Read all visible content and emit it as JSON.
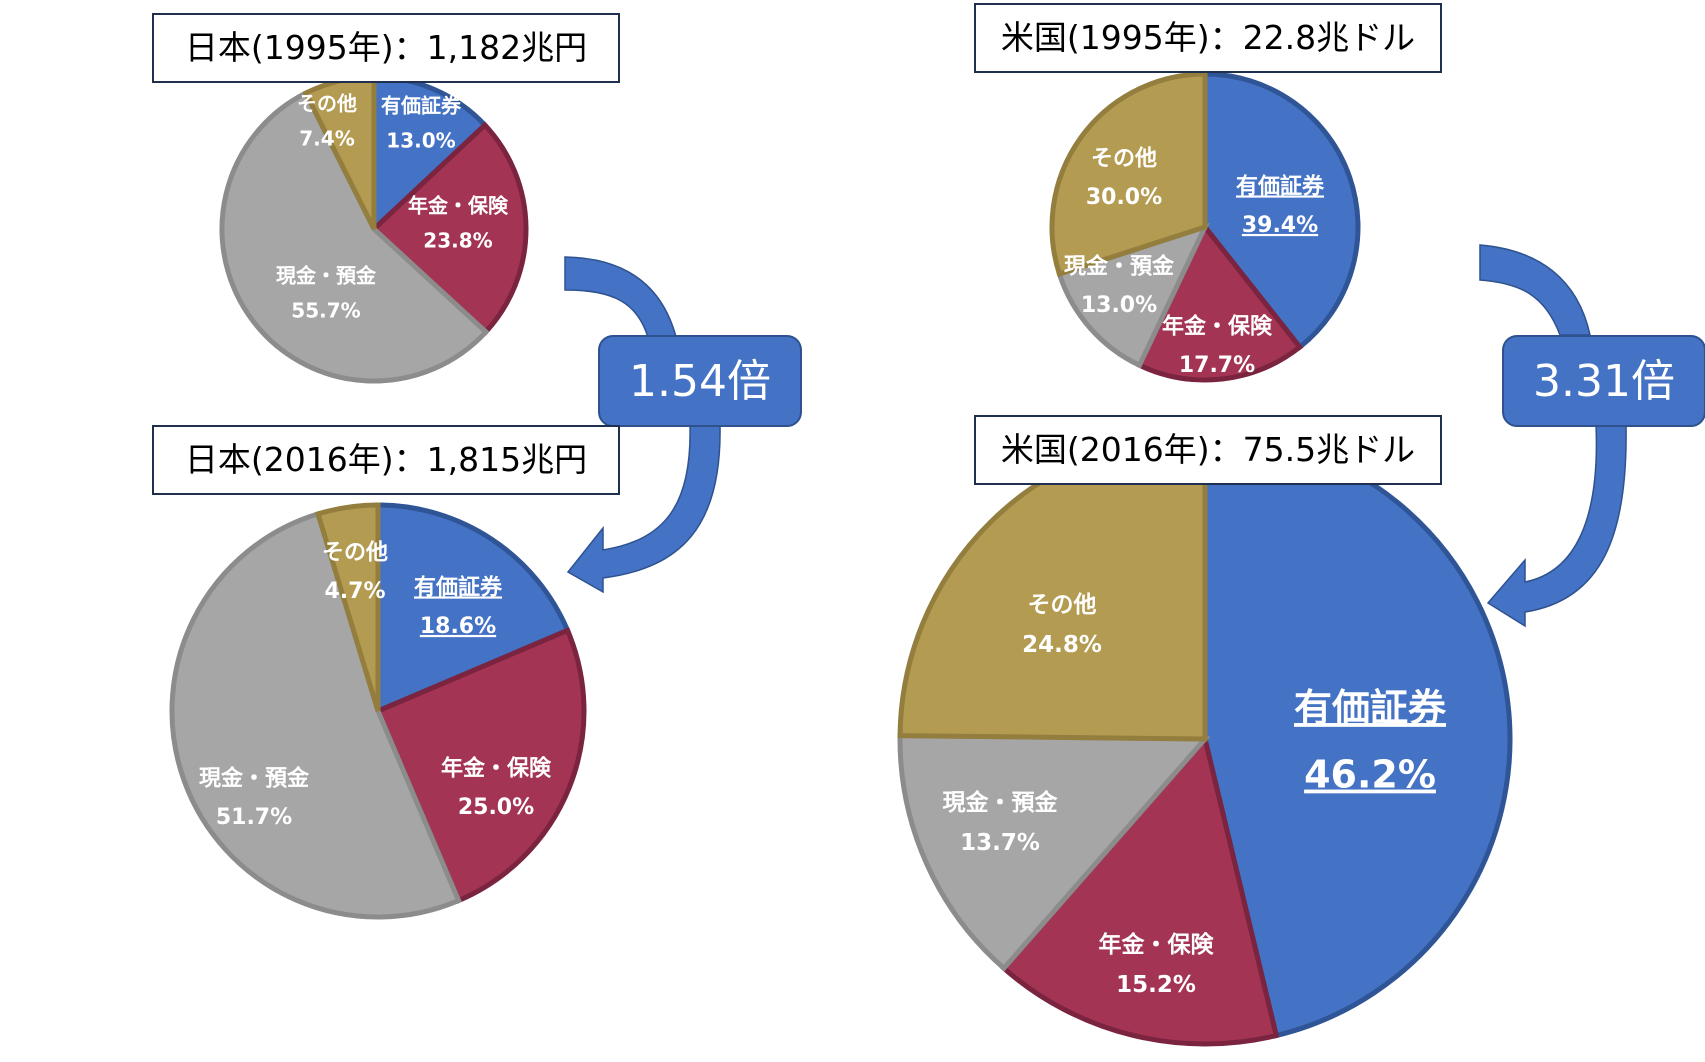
{
  "colors": {
    "有価証券": "#4472c4",
    "年金・保険": "#a33454",
    "現金・預金": "#a6a6a6",
    "その他": "#b49b52"
  },
  "ratios": {
    "japan": "1.54倍",
    "us": "3.31倍"
  },
  "chart_data": [
    {
      "type": "pie",
      "title": "日本(1995年)：1,182兆円",
      "slices": [
        {
          "label": "有価証券",
          "value": 13.0,
          "text": "13.0%"
        },
        {
          "label": "年金・保険",
          "value": 23.8,
          "text": "23.8%"
        },
        {
          "label": "現金・預金",
          "value": 55.7,
          "text": "55.7%"
        },
        {
          "label": "その他",
          "value": 7.4,
          "text": "7.4%"
        }
      ]
    },
    {
      "type": "pie",
      "title": "日本(2016年)：1,815兆円",
      "slices": [
        {
          "label": "有価証券",
          "value": 18.6,
          "text": "18.6%"
        },
        {
          "label": "年金・保険",
          "value": 25.0,
          "text": "25.0%"
        },
        {
          "label": "現金・預金",
          "value": 51.7,
          "text": "51.7%"
        },
        {
          "label": "その他",
          "value": 4.7,
          "text": "4.7%"
        }
      ]
    },
    {
      "type": "pie",
      "title": "米国(1995年)：22.8兆ドル",
      "slices": [
        {
          "label": "有価証券",
          "value": 39.4,
          "text": "39.4%"
        },
        {
          "label": "年金・保険",
          "value": 17.7,
          "text": "17.7%"
        },
        {
          "label": "現金・預金",
          "value": 13.0,
          "text": "13.0%"
        },
        {
          "label": "その他",
          "value": 30.0,
          "text": "30.0%"
        }
      ]
    },
    {
      "type": "pie",
      "title": "米国(2016年)：75.5兆ドル",
      "slices": [
        {
          "label": "有価証券",
          "value": 46.2,
          "text": "46.2%"
        },
        {
          "label": "年金・保険",
          "value": 15.2,
          "text": "15.2%"
        },
        {
          "label": "現金・預金",
          "value": 13.7,
          "text": "13.7%"
        },
        {
          "label": "その他",
          "value": 24.8,
          "text": "24.8%"
        }
      ]
    }
  ]
}
